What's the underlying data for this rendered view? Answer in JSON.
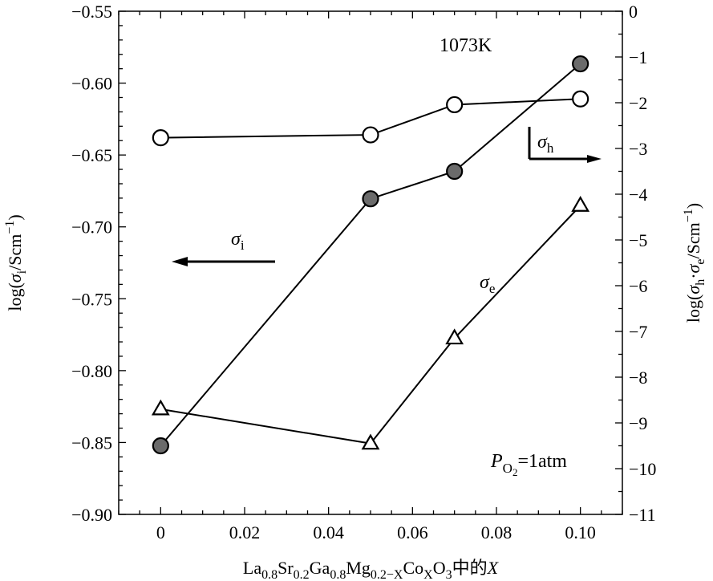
{
  "chart_data": {
    "type": "line",
    "temperature_label": "1073K",
    "pressure_label": {
      "P": "P",
      "sub": "O",
      "sub2": "2",
      "rest": "=1atm"
    },
    "x": {
      "label_parts": [
        {
          "t": "La",
          "s": ""
        },
        {
          "t": "0.8",
          "s": "sub"
        },
        {
          "t": "Sr",
          "s": ""
        },
        {
          "t": "0.2",
          "s": "sub"
        },
        {
          "t": "Ga",
          "s": ""
        },
        {
          "t": "0.8",
          "s": "sub"
        },
        {
          "t": "Mg",
          "s": ""
        },
        {
          "t": "0.2−X",
          "s": "sub"
        },
        {
          "t": "Co",
          "s": ""
        },
        {
          "t": "X",
          "s": "sub"
        },
        {
          "t": "O",
          "s": ""
        },
        {
          "t": "3",
          "s": "sub"
        },
        {
          "t": "中的",
          "s": ""
        },
        {
          "t": "X",
          "s": "ital"
        }
      ],
      "lim": [
        -0.01,
        0.11
      ],
      "ticks": [
        0,
        0.02,
        0.04,
        0.06,
        0.08,
        0.1
      ],
      "tick_labels": [
        "0",
        "0.02",
        "0.04",
        "0.06",
        "0.08",
        "0.10"
      ]
    },
    "y_left": {
      "label": "log(σi/Scm−1)",
      "lim": [
        -0.9,
        -0.55
      ],
      "ticks": [
        -0.9,
        -0.85,
        -0.8,
        -0.75,
        -0.7,
        -0.65,
        -0.6,
        -0.55
      ],
      "tick_labels": [
        "−0.90",
        "−0.85",
        "−0.80",
        "−0.75",
        "−0.70",
        "−0.65",
        "−0.60",
        "−0.55"
      ]
    },
    "y_right": {
      "label": "log(σh·σe/Scm−1)",
      "lim": [
        -11,
        0
      ],
      "ticks": [
        -11,
        -10,
        -9,
        -8,
        -7,
        -6,
        -5,
        -4,
        -3,
        -2,
        -1,
        0
      ],
      "tick_labels": [
        "−11",
        "−10",
        "−9",
        "−8",
        "−7",
        "−6",
        "−5",
        "−4",
        "−3",
        "−2",
        "−1",
        "0"
      ]
    },
    "series": [
      {
        "name": "σi",
        "axis": "left",
        "marker": "open-circle",
        "x": [
          0,
          0.05,
          0.07,
          0.1
        ],
        "y": [
          -0.638,
          -0.636,
          -0.615,
          -0.611
        ]
      },
      {
        "name": "σh",
        "axis": "right",
        "marker": "filled-circle",
        "x": [
          0,
          0.05,
          0.07,
          0.1
        ],
        "y": [
          -9.5,
          -4.1,
          -3.5,
          -1.15
        ]
      },
      {
        "name": "σe",
        "axis": "right",
        "marker": "open-triangle",
        "x": [
          0,
          0.05,
          0.07,
          0.1
        ],
        "y": [
          -8.7,
          -9.45,
          -7.15,
          -4.25
        ]
      }
    ],
    "annotations": [
      {
        "text": "σ",
        "sub": "i",
        "arrow": "left"
      },
      {
        "text": "σ",
        "sub": "h",
        "arrow": "right"
      },
      {
        "text": "σ",
        "sub": "e",
        "arrow": "none"
      }
    ],
    "colors": {
      "filled_marker": "#6b6b6b",
      "line": "#000000"
    }
  }
}
